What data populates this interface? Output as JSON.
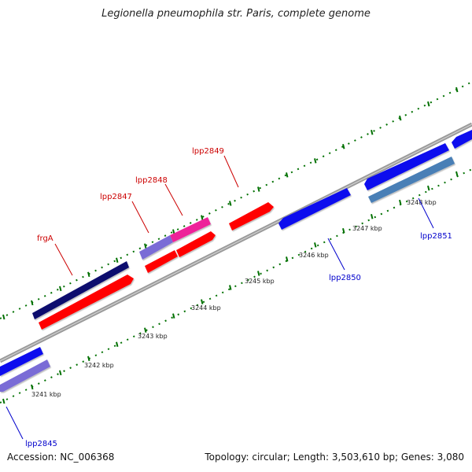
{
  "title": "Legionella pneumophila str. Paris, complete genome",
  "footer": {
    "accession": "Accession: NC_006368",
    "summary": "Topology: circular; Length: 3,503,610 bp; Genes: 3,080"
  },
  "colors": {
    "forward_label": "#cc0000",
    "reverse_label": "#0000cc",
    "backbone": "#8c8c8c",
    "tick": "#007000",
    "navy": "#0a0a6e",
    "red": "#ff0000",
    "pink": "#ee2299",
    "purple": "#7a6cd6",
    "blue": "#1010ee",
    "steelblue": "#4a7fb6"
  },
  "scale": {
    "unit": "kbp",
    "labels": [
      "3241 kbp",
      "3242 kbp",
      "3243 kbp",
      "3244 kbp",
      "3245 kbp",
      "3246 kbp",
      "3247 kbp",
      "3248 kbp"
    ]
  },
  "gene_labels": [
    {
      "text": "frgA",
      "strand": "forward"
    },
    {
      "text": "lpp2847",
      "strand": "forward"
    },
    {
      "text": "lpp2848",
      "strand": "forward"
    },
    {
      "text": "lpp2849",
      "strand": "forward"
    },
    {
      "text": "lpp2845",
      "strand": "reverse"
    },
    {
      "text": "lpp2850",
      "strand": "reverse"
    },
    {
      "text": "lpp2851",
      "strand": "reverse"
    }
  ]
}
